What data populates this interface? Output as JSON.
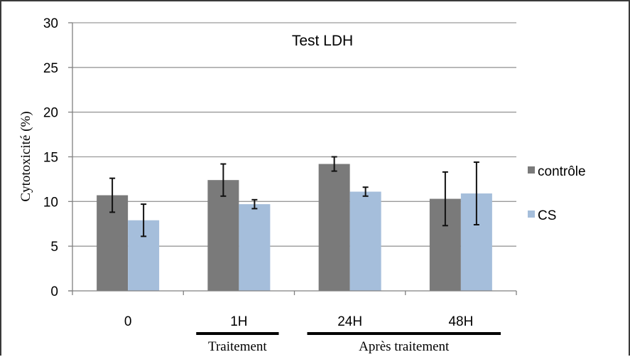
{
  "chart_data": {
    "type": "bar",
    "title": "Test LDH",
    "xlabel": "",
    "ylabel": "Cytotoxicité (%)",
    "ylim": [
      0,
      30
    ],
    "yticks": [
      0,
      5,
      10,
      15,
      20,
      25,
      30
    ],
    "grid": true,
    "legend_position": "right",
    "categories": [
      "0",
      "1H",
      "24H",
      "48H"
    ],
    "series": [
      {
        "name": "contrôle",
        "color": "#7a7a7a",
        "values": [
          10.7,
          12.4,
          14.2,
          10.3
        ],
        "errors": [
          1.9,
          1.8,
          0.8,
          3.0
        ]
      },
      {
        "name": "CS",
        "color": "#a5bedb",
        "values": [
          7.9,
          9.7,
          11.1,
          10.9
        ],
        "errors": [
          1.8,
          0.5,
          0.5,
          3.5
        ]
      }
    ],
    "group_labels": [
      {
        "text": "Traitement",
        "categories": [
          "1H"
        ]
      },
      {
        "text": "Après traitement",
        "categories": [
          "24H",
          "48H"
        ]
      }
    ]
  }
}
